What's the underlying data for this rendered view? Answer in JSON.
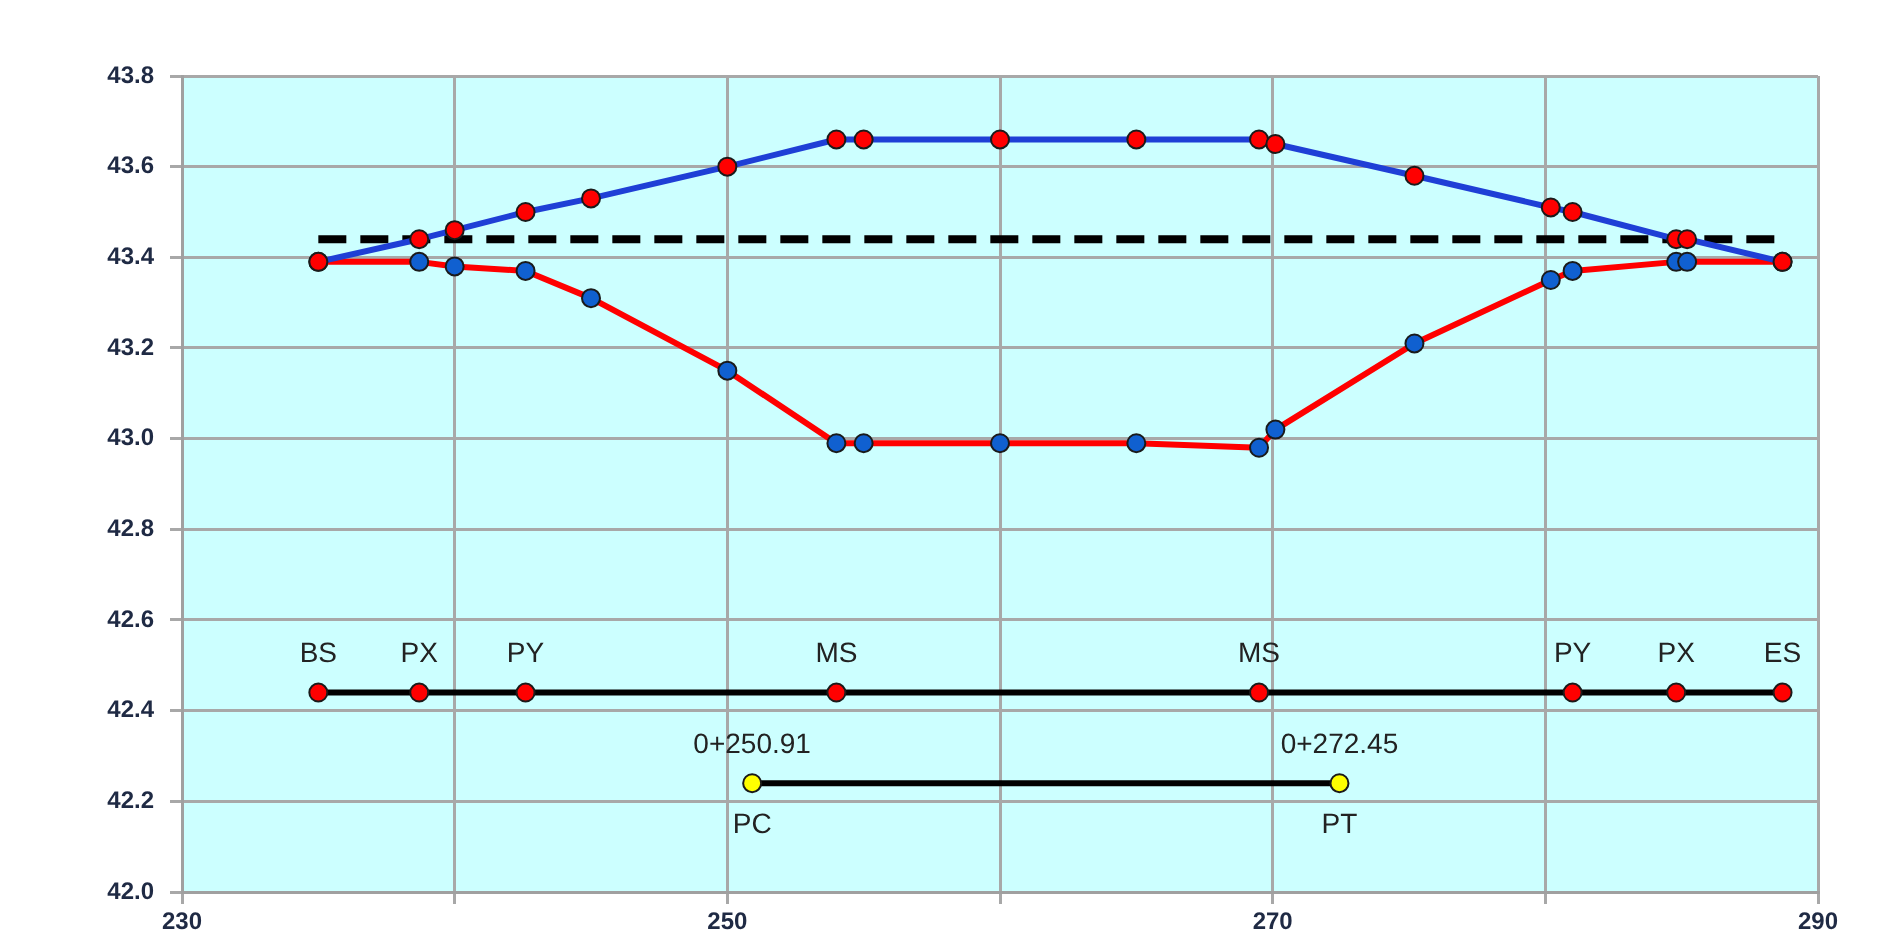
{
  "chart_data": {
    "type": "line",
    "x": [
      235,
      238.7,
      240,
      242.6,
      245,
      250,
      254,
      255,
      260,
      265,
      269.5,
      270.1,
      275.2,
      280.2,
      281,
      284.8,
      285.2,
      288.7
    ],
    "xlim": [
      230,
      290
    ],
    "xticks": [
      230,
      {
        "value": 240,
        "label": null
      },
      250,
      {
        "value": 260,
        "label": null
      },
      270,
      {
        "value": 280,
        "label": null
      },
      290
    ],
    "ylim": [
      42,
      43.8
    ],
    "yticks": [
      {
        "value": 42,
        "label": "42.0"
      },
      42.2,
      42.4,
      42.6,
      42.8,
      {
        "value": 43,
        "label": "43.0"
      },
      43.2,
      43.4,
      43.6,
      43.8
    ],
    "grid": true,
    "legend": false,
    "marker": "circle",
    "line_style": "solid",
    "series": [
      {
        "color": "#1f3fd6",
        "colors": [
          "#ff0000",
          "#ff0000",
          "#ff0000",
          "#ff0000",
          "#ff0000",
          "#ff0000",
          "#ff0000",
          "#ff0000",
          "#ff0000",
          "#ff0000",
          "#ff0000",
          "#ff0000",
          "#ff0000",
          "#ff0000",
          "#ff0000",
          "#ff0000",
          "#ff0000",
          "#ff0000"
        ],
        "values": [
          43.39,
          43.44,
          43.46,
          43.5,
          43.53,
          43.6,
          43.66,
          43.66,
          43.66,
          43.66,
          43.66,
          43.65,
          43.58,
          43.51,
          43.5,
          43.44,
          43.44,
          43.39
        ]
      },
      {
        "color": "#ff0000",
        "colors": [
          "#1060d0",
          "#1060d0",
          "#1060d0",
          "#1060d0",
          "#1060d0",
          "#1060d0",
          "#1060d0",
          "#1060d0",
          "#1060d0",
          "#1060d0",
          "#1060d0",
          "#1060d0",
          "#1060d0",
          "#1060d0",
          "#1060d0",
          "#1060d0",
          "#1060d0",
          "#1060d0"
        ],
        "values": [
          43.39,
          43.39,
          43.38,
          43.37,
          43.31,
          43.15,
          42.99,
          42.99,
          42.99,
          42.99,
          42.98,
          43.02,
          43.21,
          43.35,
          43.37,
          43.39,
          43.39,
          43.39
        ]
      },
      {
        "color": "#000000",
        "x": [
          235,
          288.7
        ],
        "values": [
          43.44,
          43.44
        ],
        "line_style": "dashed",
        "marker": "none"
      },
      {
        "color": "#000000",
        "colors": [
          "#ff0000",
          "#ff0000",
          "#ff0000",
          "#ff0000",
          "#ff0000",
          "#ff0000",
          "#ff0000",
          "#ff0000"
        ],
        "x": [
          235,
          238.7,
          242.6,
          254,
          269.5,
          281,
          284.8,
          288.7
        ],
        "values": [
          42.44,
          42.44,
          42.44,
          42.44,
          42.44,
          42.44,
          42.44,
          42.44
        ]
      },
      {
        "color": "#000000",
        "colors": [
          "#ffff00",
          "#ffff00"
        ],
        "x": [
          250.91,
          272.45
        ],
        "values": [
          42.24,
          42.24
        ]
      }
    ],
    "annotations": [
      {
        "text": "BS",
        "x": 235,
        "y": 42.44
      },
      {
        "text": "PX",
        "x": 238.7,
        "y": 42.44
      },
      {
        "text": "PY",
        "x": 242.6,
        "y": 42.44
      },
      {
        "text": "MS",
        "x": 254,
        "y": 42.44
      },
      {
        "text": "MS",
        "x": 269.5,
        "y": 42.44
      },
      {
        "text": "PY",
        "x": 281,
        "y": 42.44
      },
      {
        "text": "PX",
        "x": 284.8,
        "y": 42.44
      },
      {
        "text": "ES",
        "x": 288.7,
        "y": 42.44
      },
      {
        "text": "0+250.91",
        "x": 250.91,
        "y": 42.24
      },
      {
        "text": "PC",
        "x": 250.91,
        "y": 42.24
      },
      {
        "text": "0+272.45",
        "x": 272.45,
        "y": 42.24
      },
      {
        "text": "PT",
        "x": 272.45,
        "y": 42.24
      }
    ]
  }
}
